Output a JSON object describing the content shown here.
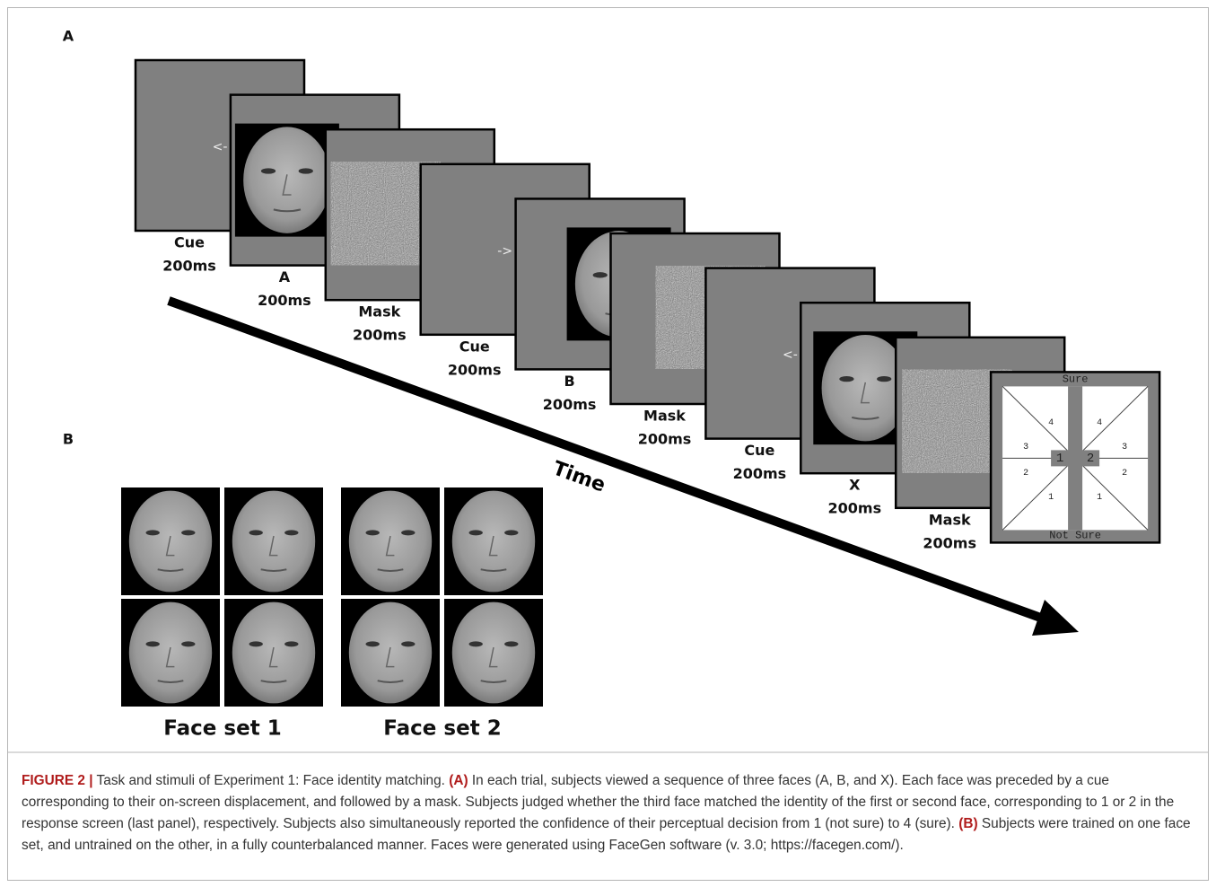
{
  "panel_a": {
    "label": "A",
    "frames": [
      {
        "type": "cue",
        "name": "Cue",
        "duration": "200ms",
        "arrow": "<-"
      },
      {
        "type": "face",
        "name": "A",
        "duration": "200ms"
      },
      {
        "type": "mask",
        "name": "Mask",
        "duration": "200ms"
      },
      {
        "type": "cue",
        "name": "Cue",
        "duration": "200ms",
        "arrow": "->"
      },
      {
        "type": "face",
        "name": "B",
        "duration": "200ms"
      },
      {
        "type": "mask",
        "name": "Mask",
        "duration": "200ms"
      },
      {
        "type": "cue",
        "name": "Cue",
        "duration": "200ms",
        "arrow": "<-"
      },
      {
        "type": "face",
        "name": "X",
        "duration": "200ms"
      },
      {
        "type": "mask",
        "name": "Mask",
        "duration": "200ms"
      }
    ],
    "time_label": "Time",
    "response": {
      "top": "Sure",
      "bottom": "Not Sure",
      "choices": [
        "1",
        "2"
      ],
      "left_levels": [
        "4",
        "3",
        "2",
        "1"
      ],
      "right_levels": [
        "4",
        "3",
        "2",
        "1"
      ]
    }
  },
  "panel_b": {
    "label": "B",
    "sets": [
      "Face set 1",
      "Face set 2"
    ]
  },
  "caption": {
    "runs": [
      {
        "text": "FIGURE 2 |",
        "bold": true
      },
      {
        "text": " Task and stimuli of Experiment 1: Face identity matching. ",
        "bold": false
      },
      {
        "text": "(A)",
        "bold": true
      },
      {
        "text": " In each trial, subjects viewed a sequence of three faces (A, B, and X). Each face was preceded by a cue corresponding to their on-screen displacement, and followed by a mask. Subjects judged whether the third face matched the identity of the first or second face, corresponding to 1 or 2 in the response screen (last panel), respectively. Subjects also simultaneously reported the confidence of their perceptual decision from 1 (not sure) to 4 (sure). ",
        "bold": false
      },
      {
        "text": "(B)",
        "bold": true
      },
      {
        "text": " Subjects were trained on one face set, and untrained on the other, in a fully counterbalanced manner. Faces were generated using FaceGen software (v. 3.0; https://facegen.com/).",
        "bold": false
      }
    ]
  }
}
